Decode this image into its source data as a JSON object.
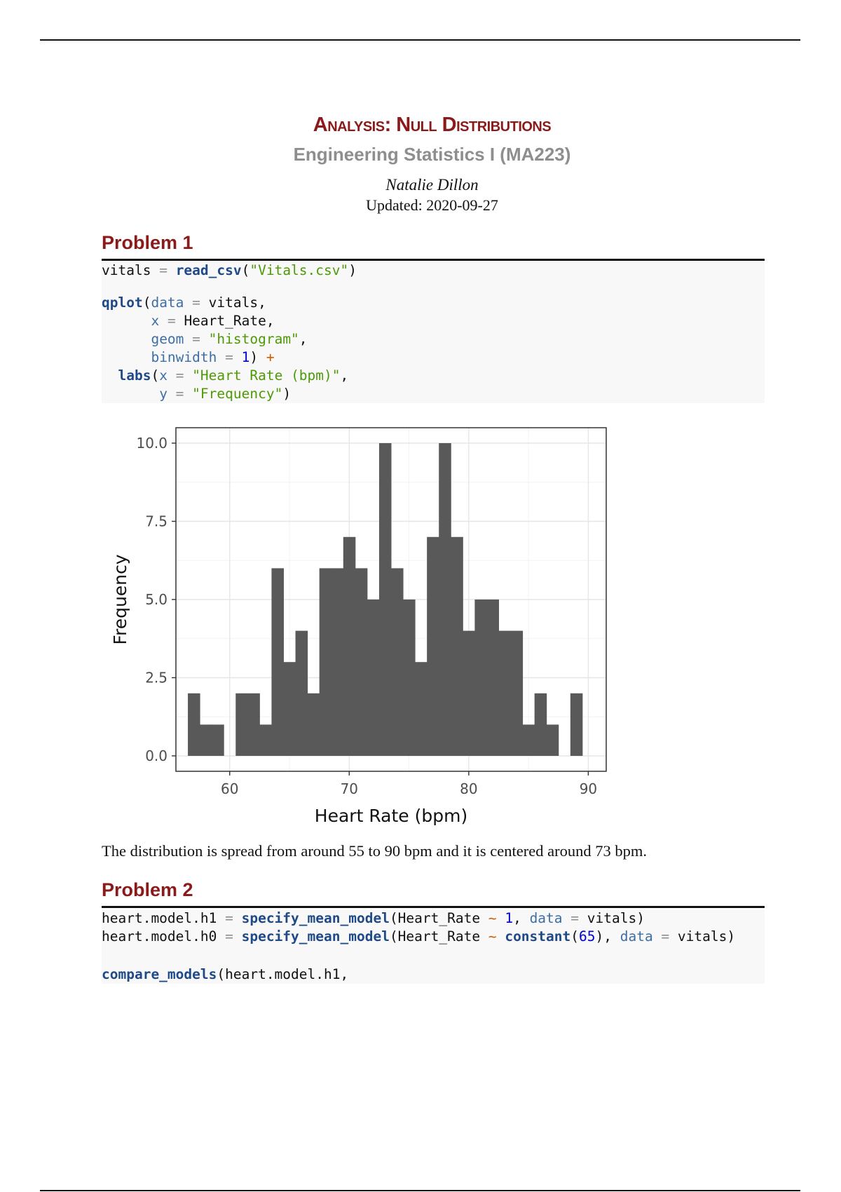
{
  "header": {
    "title": "Analysis: Null Distributions",
    "subtitle": "Engineering Statistics I (MA223)",
    "author": "Natalie Dillon",
    "updated": "Updated: 2020-09-27"
  },
  "problem1": {
    "heading": "Problem 1",
    "code": {
      "l1_var": "vitals",
      "l1_eq": " = ",
      "l1_fn": "read_csv",
      "l1_open": "(",
      "l1_str": "\"Vitals.csv\"",
      "l1_close": ")",
      "l2_fn": "qplot",
      "l2_open": "(",
      "l2_arg": "data",
      "l2_eq": " = ",
      "l2_val": "vitals,",
      "l3_indent": "      ",
      "l3_arg": "x",
      "l3_eq": " = ",
      "l3_val": "Heart_Rate,",
      "l4_arg": "geom",
      "l4_eq": " = ",
      "l4_str": "\"histogram\"",
      "l4_comma": ",",
      "l5_arg": "binwidth",
      "l5_eq": " = ",
      "l5_num": "1",
      "l5_close": ") ",
      "l5_op": "+",
      "l6_indent": "  ",
      "l6_fn": "labs",
      "l6_open": "(",
      "l6_arg": "x",
      "l6_eq": " = ",
      "l6_str": "\"Heart Rate (bpm)\"",
      "l6_comma": ",",
      "l7_indent": "       ",
      "l7_arg": "y",
      "l7_eq": " = ",
      "l7_str": "\"Frequency\"",
      "l7_close": ")"
    },
    "conclusion": "The distribution is spread from around 55 to 90 bpm and it is centered around 73 bpm."
  },
  "problem2": {
    "heading": "Problem 2",
    "code": {
      "a_var": "heart.model.h1",
      "a_eq": " = ",
      "a_fn": "specify_mean_model",
      "a_open": "(Heart_Rate ",
      "a_op": "~",
      "a_sp": " ",
      "a_num": "1",
      "a_comma": ", ",
      "a_arg": "data",
      "a_eq2": " = ",
      "a_val": "vitals)",
      "b_var": "heart.model.h0",
      "b_eq": " = ",
      "b_fn": "specify_mean_model",
      "b_open": "(Heart_Rate ",
      "b_op": "~",
      "b_sp": " ",
      "b_fn2": "constant",
      "b_p": "(",
      "b_num": "65",
      "b_p2": "), ",
      "b_arg": "data",
      "b_eq2": " = ",
      "b_val": "vitals)",
      "c_fn": "compare_models",
      "c_rest": "(heart.model.h1,"
    }
  },
  "colors": {
    "heading": "#8b1a1a",
    "subtitle": "#8e8e8e",
    "bar": "#595959",
    "panel_border": "#333333",
    "grid": "#ebebeb",
    "code_bg": "#f8f8f8"
  },
  "chart_data": {
    "type": "bar",
    "xlabel": "Heart Rate (bpm)",
    "ylabel": "Frequency",
    "binwidth": 1,
    "xlim": [
      55.5,
      91.5
    ],
    "ylim": [
      0,
      10
    ],
    "xticks": [
      60,
      70,
      80,
      90
    ],
    "yticks": [
      0.0,
      2.5,
      5.0,
      7.5,
      10.0
    ],
    "ytick_labels": [
      "0.0",
      "2.5",
      "5.0",
      "7.5",
      "10.0"
    ],
    "grid": true,
    "bin_centers": [
      57,
      58,
      59,
      60,
      61,
      62,
      63,
      64,
      65,
      66,
      67,
      68,
      69,
      70,
      71,
      72,
      73,
      74,
      75,
      76,
      77,
      78,
      79,
      80,
      81,
      82,
      83,
      84,
      85,
      86,
      87,
      88,
      89
    ],
    "values": [
      2,
      1,
      1,
      0,
      2,
      2,
      1,
      6,
      3,
      4,
      2,
      6,
      6,
      7,
      6,
      5,
      10,
      6,
      5,
      3,
      7,
      10,
      7,
      4,
      5,
      5,
      4,
      4,
      1,
      2,
      1,
      0,
      2
    ]
  }
}
